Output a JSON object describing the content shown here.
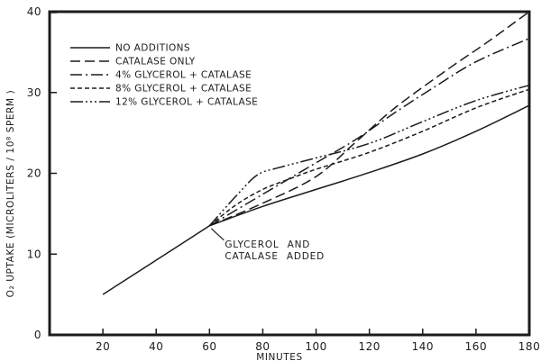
{
  "figure": {
    "background": "#ffffff",
    "ink_color": "#1c1c1c"
  },
  "chart_data": {
    "type": "line",
    "title": "",
    "xlabel": "MINUTES",
    "ylabel": "O₂ UPTAKE (MICROLITERS / 10⁸ SPERM )",
    "xlim": [
      0,
      180
    ],
    "ylim": [
      0,
      40
    ],
    "x_ticks": [
      20,
      40,
      60,
      80,
      100,
      120,
      140,
      160,
      180
    ],
    "y_ticks": [
      0,
      10,
      20,
      30,
      40
    ],
    "grid": false,
    "legend_position": "upper-left-inside",
    "shared_segment": {
      "description": "single common line before additions, all conditions identical",
      "style": "solid",
      "points": [
        [
          20,
          5.0
        ],
        [
          40,
          9.25
        ],
        [
          60,
          13.5
        ]
      ]
    },
    "series": [
      {
        "name": "NO ADDITIONS",
        "style": "solid",
        "points": [
          [
            60,
            13.5
          ],
          [
            80,
            15.9
          ],
          [
            100,
            18.0
          ],
          [
            120,
            20.1
          ],
          [
            140,
            22.4
          ],
          [
            160,
            25.2
          ],
          [
            180,
            28.4
          ]
        ]
      },
      {
        "name": "CATALASE ONLY",
        "style": "long-dash",
        "points": [
          [
            60,
            13.5
          ],
          [
            80,
            16.3
          ],
          [
            100,
            19.6
          ],
          [
            115,
            23.9
          ],
          [
            130,
            28.2
          ],
          [
            150,
            33.0
          ],
          [
            165,
            36.4
          ],
          [
            180,
            40.0
          ]
        ]
      },
      {
        "name": "4% GLYCEROL + CATALASE",
        "style": "dash-dot",
        "points": [
          [
            60,
            13.5
          ],
          [
            80,
            17.4
          ],
          [
            100,
            21.3
          ],
          [
            115,
            24.2
          ],
          [
            130,
            27.6
          ],
          [
            145,
            30.8
          ],
          [
            160,
            33.8
          ],
          [
            180,
            36.7
          ]
        ]
      },
      {
        "name": "8% GLYCEROL + CATALASE",
        "style": "short-dash",
        "points": [
          [
            60,
            13.5
          ],
          [
            70,
            16.1
          ],
          [
            80,
            18.0
          ],
          [
            90,
            19.3
          ],
          [
            100,
            20.5
          ],
          [
            120,
            22.6
          ],
          [
            140,
            25.2
          ],
          [
            160,
            28.1
          ],
          [
            180,
            30.4
          ]
        ]
      },
      {
        "name": "12% GLYCEROL + CATALASE",
        "style": "dash-dot-dot-dot",
        "points": [
          [
            60,
            13.5
          ],
          [
            70,
            17.2
          ],
          [
            78,
            19.8
          ],
          [
            86,
            20.7
          ],
          [
            100,
            21.9
          ],
          [
            120,
            23.7
          ],
          [
            140,
            26.4
          ],
          [
            160,
            29.0
          ],
          [
            180,
            30.9
          ]
        ]
      }
    ],
    "annotation": {
      "lines": [
        "GLYCEROL AND",
        "CATALASE ADDED"
      ],
      "target_x_minutes": 60,
      "target_y_value": 13.5
    }
  }
}
